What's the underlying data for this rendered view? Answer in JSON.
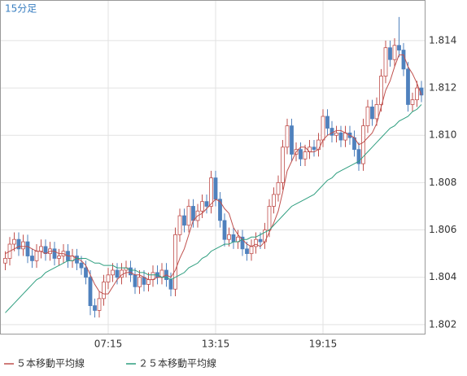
{
  "chart_data": {
    "type": "candlestick",
    "title": "15分足",
    "categories": [
      null,
      null,
      null,
      null,
      null,
      null,
      null,
      null,
      null,
      null,
      null,
      null,
      null,
      null,
      null,
      null,
      null,
      null,
      null,
      null,
      null,
      null,
      null,
      "07:15",
      null,
      null,
      null,
      null,
      null,
      null,
      null,
      null,
      null,
      null,
      null,
      null,
      null,
      null,
      null,
      null,
      null,
      null,
      null,
      null,
      null,
      null,
      null,
      "13:15",
      null,
      null,
      null,
      null,
      null,
      null,
      null,
      null,
      null,
      null,
      null,
      null,
      null,
      null,
      null,
      null,
      null,
      null,
      null,
      null,
      null,
      null,
      null,
      "19:15",
      null,
      null,
      null,
      null,
      null,
      null,
      null,
      null,
      null,
      null,
      null,
      null,
      null,
      null,
      null,
      null,
      null,
      null,
      null,
      null,
      null,
      null
    ],
    "open": [
      1.8046,
      1.8048,
      1.8054,
      1.8056,
      1.8052,
      1.8055,
      1.8049,
      1.8047,
      1.8051,
      1.8053,
      1.805,
      1.8052,
      1.8048,
      1.8049,
      1.8051,
      1.8047,
      1.8049,
      1.8046,
      1.8044,
      1.804,
      1.8028,
      1.8026,
      1.8031,
      1.8038,
      1.8041,
      1.8043,
      1.804,
      1.8043,
      1.8044,
      1.8041,
      1.8036,
      1.804,
      1.8037,
      1.8039,
      1.8042,
      1.804,
      1.8043,
      1.8039,
      1.8035,
      1.8058,
      1.8066,
      1.8062,
      1.807,
      1.8064,
      1.8068,
      1.8072,
      1.807,
      1.8082,
      1.8073,
      1.8064,
      1.8056,
      1.8058,
      1.8055,
      1.8057,
      1.8052,
      1.805,
      1.8053,
      1.8056,
      1.8055,
      1.806,
      1.807,
      1.8075,
      1.808,
      1.8095,
      1.8104,
      1.8092,
      1.8094,
      1.809,
      1.8093,
      1.8095,
      1.8094,
      1.8098,
      1.8108,
      1.8103,
      1.81,
      1.8101,
      1.8098,
      1.8101,
      1.8099,
      1.8094,
      1.8088,
      1.8104,
      1.8112,
      1.8107,
      1.8113,
      1.8125,
      1.8137,
      1.8132,
      1.8138,
      1.8136,
      1.8128,
      1.8113,
      1.8115,
      1.812
    ],
    "high": [
      1.8051,
      1.8057,
      1.8059,
      1.8059,
      1.8058,
      1.8058,
      1.8052,
      1.8054,
      1.8056,
      1.8056,
      1.8055,
      1.8055,
      1.8052,
      1.8054,
      1.8054,
      1.8052,
      1.8052,
      1.8049,
      1.8047,
      1.8043,
      1.8031,
      1.8034,
      1.8041,
      1.8044,
      1.8046,
      1.8046,
      1.8046,
      1.8047,
      1.8047,
      1.8044,
      1.8043,
      1.8043,
      1.8042,
      1.8045,
      1.8045,
      1.8046,
      1.8046,
      1.8042,
      1.8061,
      1.8069,
      1.8069,
      1.8073,
      1.8073,
      1.8071,
      1.8075,
      1.8075,
      1.8085,
      1.8085,
      1.8076,
      1.8067,
      1.8061,
      1.8061,
      1.806,
      1.806,
      1.8055,
      1.8056,
      1.8059,
      1.8059,
      1.8063,
      1.8073,
      1.8078,
      1.8083,
      1.8098,
      1.8107,
      1.8107,
      1.8097,
      1.8097,
      1.8096,
      1.8098,
      1.8098,
      1.8101,
      1.8111,
      1.8111,
      1.8106,
      1.8104,
      1.8104,
      1.8104,
      1.8104,
      1.8102,
      1.8097,
      1.8107,
      1.8115,
      1.8115,
      1.8116,
      1.8128,
      1.814,
      1.814,
      1.8141,
      1.815,
      1.8139,
      1.8131,
      1.8118,
      1.8123,
      1.8123
    ],
    "low": [
      1.8043,
      1.8045,
      1.8051,
      1.8049,
      1.8049,
      1.8046,
      1.8044,
      1.8044,
      1.8048,
      1.8047,
      1.8047,
      1.8045,
      1.8045,
      1.8046,
      1.8044,
      1.8044,
      1.8043,
      1.8041,
      1.8037,
      1.8024,
      1.8023,
      1.8023,
      1.8028,
      1.8035,
      1.8038,
      1.8037,
      1.8037,
      1.804,
      1.8038,
      1.8033,
      1.8033,
      1.8034,
      1.8034,
      1.8036,
      1.8037,
      1.8037,
      1.8036,
      1.8032,
      1.8032,
      1.8055,
      1.8059,
      1.8059,
      1.8061,
      1.8061,
      1.8065,
      1.8067,
      1.8067,
      1.807,
      1.8061,
      1.8053,
      1.8053,
      1.8052,
      1.8052,
      1.8049,
      1.8047,
      1.8047,
      1.805,
      1.8052,
      1.8052,
      1.8057,
      1.8067,
      1.8072,
      1.8077,
      1.8092,
      1.8089,
      1.8089,
      1.8087,
      1.8087,
      1.809,
      1.8091,
      1.8091,
      1.8095,
      1.81,
      1.8097,
      1.8097,
      1.8095,
      1.8095,
      1.8096,
      1.8091,
      1.8085,
      1.8085,
      1.8101,
      1.8104,
      1.8104,
      1.811,
      1.8122,
      1.8129,
      1.8129,
      1.8133,
      1.8125,
      1.811,
      1.811,
      1.8112,
      1.8114
    ],
    "close": [
      1.8048,
      1.8054,
      1.8056,
      1.8052,
      1.8055,
      1.8049,
      1.8047,
      1.8051,
      1.8053,
      1.805,
      1.8052,
      1.8048,
      1.8049,
      1.8051,
      1.8047,
      1.8049,
      1.8046,
      1.8044,
      1.804,
      1.8028,
      1.8026,
      1.8031,
      1.8038,
      1.8041,
      1.8043,
      1.804,
      1.8043,
      1.8044,
      1.8041,
      1.8036,
      1.804,
      1.8037,
      1.8039,
      1.8042,
      1.804,
      1.8043,
      1.8039,
      1.8035,
      1.8058,
      1.8066,
      1.8062,
      1.807,
      1.8064,
      1.8068,
      1.8072,
      1.807,
      1.8082,
      1.8073,
      1.8064,
      1.8056,
      1.8058,
      1.8055,
      1.8057,
      1.8052,
      1.805,
      1.8053,
      1.8056,
      1.8055,
      1.806,
      1.807,
      1.8075,
      1.808,
      1.8095,
      1.8104,
      1.8092,
      1.8094,
      1.809,
      1.8093,
      1.8095,
      1.8094,
      1.8098,
      1.8108,
      1.8103,
      1.81,
      1.8101,
      1.8098,
      1.8101,
      1.8099,
      1.8094,
      1.8088,
      1.8104,
      1.8112,
      1.8107,
      1.8113,
      1.8125,
      1.8137,
      1.8132,
      1.8138,
      1.8136,
      1.8128,
      1.8113,
      1.8115,
      1.812,
      1.8117
    ],
    "up_color": "#c0504d",
    "down_color": "#4f81bd",
    "series": [
      {
        "name": "５本移動平均線",
        "color": "#c0504d",
        "values": [
          1.805,
          1.8051,
          1.8052,
          1.8053,
          1.8053,
          1.8053,
          1.8052,
          1.8051,
          1.8051,
          1.805,
          1.8051,
          1.8051,
          1.805,
          1.805,
          1.8049,
          1.8049,
          1.8048,
          1.8047,
          1.8045,
          1.8041,
          1.8037,
          1.8034,
          1.8033,
          1.8033,
          1.8036,
          1.8039,
          1.8041,
          1.8042,
          1.8042,
          1.8041,
          1.8041,
          1.804,
          1.8039,
          1.8039,
          1.804,
          1.804,
          1.8041,
          1.804,
          1.8043,
          1.8048,
          1.8052,
          1.8058,
          1.8064,
          1.8066,
          1.8067,
          1.8069,
          1.8071,
          1.8073,
          1.8072,
          1.8069,
          1.8067,
          1.8061,
          1.8058,
          1.8056,
          1.8054,
          1.8053,
          1.8054,
          1.8053,
          1.8055,
          1.8059,
          1.8063,
          1.8068,
          1.8076,
          1.8085,
          1.8089,
          1.8093,
          1.8095,
          1.8095,
          1.8093,
          1.8093,
          1.8094,
          1.8098,
          1.81,
          1.8101,
          1.8102,
          1.8102,
          1.8101,
          1.81,
          1.8099,
          1.8096,
          1.8097,
          1.8099,
          1.8101,
          1.8105,
          1.8112,
          1.8119,
          1.8123,
          1.8129,
          1.8134,
          1.8134,
          1.8129,
          1.8126,
          1.8122,
          1.8117
        ]
      },
      {
        "name": "２５本移動平均線",
        "color": "#2e9e7f",
        "values": [
          1.8025,
          1.8027,
          1.8029,
          1.8031,
          1.8033,
          1.8035,
          1.8037,
          1.8039,
          1.804,
          1.8042,
          1.8043,
          1.8044,
          1.8045,
          1.8046,
          1.8047,
          1.8047,
          1.8048,
          1.8048,
          1.8048,
          1.8047,
          1.8046,
          1.8046,
          1.8045,
          1.8045,
          1.8045,
          1.8044,
          1.8044,
          1.8044,
          1.8043,
          1.8043,
          1.8042,
          1.8042,
          1.8041,
          1.8041,
          1.8041,
          1.804,
          1.804,
          1.8039,
          1.804,
          1.8041,
          1.8042,
          1.8044,
          1.8045,
          1.8046,
          1.8048,
          1.8049,
          1.8051,
          1.8052,
          1.8053,
          1.8054,
          1.8054,
          1.8055,
          1.8055,
          1.8056,
          1.8056,
          1.8057,
          1.8057,
          1.8058,
          1.8059,
          1.806,
          1.8062,
          1.8064,
          1.8066,
          1.8068,
          1.807,
          1.8071,
          1.8072,
          1.8073,
          1.8074,
          1.8075,
          1.8077,
          1.8079,
          1.8081,
          1.8082,
          1.8084,
          1.8085,
          1.8086,
          1.8087,
          1.8088,
          1.8089,
          1.8091,
          1.8093,
          1.8095,
          1.8097,
          1.8099,
          1.8101,
          1.8103,
          1.8104,
          1.8106,
          1.8107,
          1.8108,
          1.811,
          1.8111,
          1.8113
        ]
      }
    ],
    "ylim": [
      1.8016,
      1.8157
    ],
    "yticks": [
      1.802,
      1.804,
      1.806,
      1.808,
      {
        "value": 1.81,
        "label": "1.810"
      },
      1.812,
      1.814
    ],
    "grid": true
  }
}
